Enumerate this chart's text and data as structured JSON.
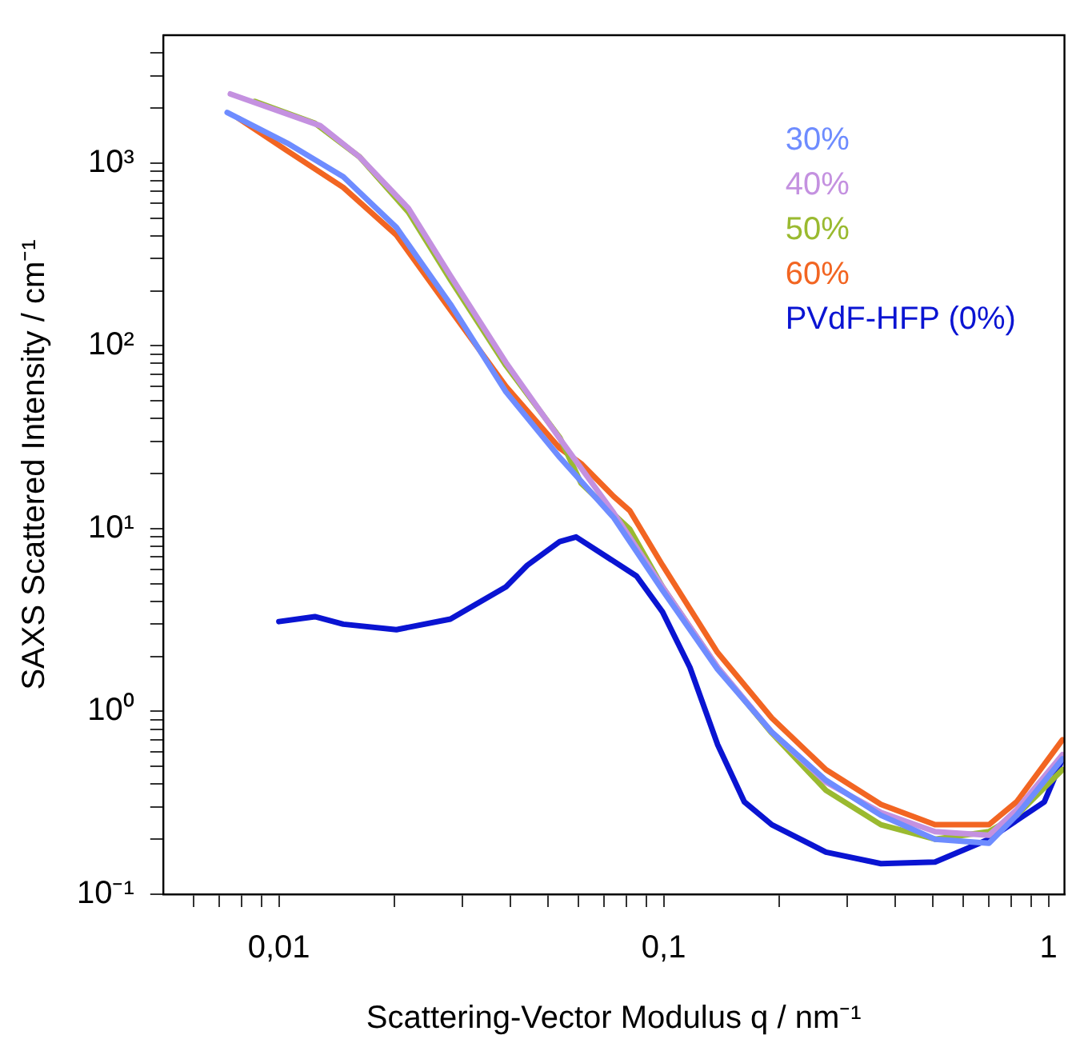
{
  "chart_data": {
    "type": "line",
    "xlabel": "Scattering-Vector Modulus q / nm⁻¹",
    "ylabel": "SAXS Scattered Intensity / cm⁻¹",
    "log": "xy",
    "grid": false,
    "legend": "top right",
    "marker": "none",
    "line_style": "solid",
    "xlim": [
      0.005,
      1.1
    ],
    "ylim": [
      0.1,
      5000
    ],
    "xticks": [
      {
        "value": 0.006,
        "label": null
      },
      {
        "value": 0.007,
        "label": null
      },
      {
        "value": 0.008,
        "label": null
      },
      {
        "value": 0.009,
        "label": null
      },
      {
        "value": 0.01,
        "label": "0,01"
      },
      {
        "value": 0.02,
        "label": null
      },
      {
        "value": 0.03,
        "label": null
      },
      {
        "value": 0.04,
        "label": null
      },
      {
        "value": 0.05,
        "label": null
      },
      {
        "value": 0.06,
        "label": null
      },
      {
        "value": 0.07,
        "label": null
      },
      {
        "value": 0.08,
        "label": null
      },
      {
        "value": 0.09,
        "label": null
      },
      {
        "value": 0.1,
        "label": "0,1"
      },
      {
        "value": 0.2,
        "label": null
      },
      {
        "value": 0.3,
        "label": null
      },
      {
        "value": 0.4,
        "label": null
      },
      {
        "value": 0.5,
        "label": null
      },
      {
        "value": 0.6,
        "label": null
      },
      {
        "value": 0.7,
        "label": null
      },
      {
        "value": 0.8,
        "label": null
      },
      {
        "value": 0.9,
        "label": null
      },
      1
    ],
    "yticks": [
      {
        "value": 0.1,
        "label": "10⁻¹"
      },
      {
        "value": 0.2,
        "label": null
      },
      {
        "value": 0.3,
        "label": null
      },
      {
        "value": 0.4,
        "label": null
      },
      {
        "value": 0.5,
        "label": null
      },
      {
        "value": 0.6,
        "label": null
      },
      {
        "value": 0.7,
        "label": null
      },
      {
        "value": 0.8,
        "label": null
      },
      {
        "value": 0.9,
        "label": null
      },
      {
        "value": 1,
        "label": "10⁰"
      },
      {
        "value": 2,
        "label": null
      },
      {
        "value": 3,
        "label": null
      },
      {
        "value": 4,
        "label": null
      },
      {
        "value": 5,
        "label": null
      },
      {
        "value": 6,
        "label": null
      },
      {
        "value": 7,
        "label": null
      },
      {
        "value": 8,
        "label": null
      },
      {
        "value": 9,
        "label": null
      },
      {
        "value": 10,
        "label": "10¹"
      },
      {
        "value": 20,
        "label": null
      },
      {
        "value": 30,
        "label": null
      },
      {
        "value": 40,
        "label": null
      },
      {
        "value": 50,
        "label": null
      },
      {
        "value": 60,
        "label": null
      },
      {
        "value": 70,
        "label": null
      },
      {
        "value": 80,
        "label": null
      },
      {
        "value": 90,
        "label": null
      },
      {
        "value": 100,
        "label": "10²"
      },
      {
        "value": 200,
        "label": null
      },
      {
        "value": 300,
        "label": null
      },
      {
        "value": 400,
        "label": null
      },
      {
        "value": 500,
        "label": null
      },
      {
        "value": 600,
        "label": null
      },
      {
        "value": 700,
        "label": null
      },
      {
        "value": 800,
        "label": null
      },
      {
        "value": 900,
        "label": null
      },
      {
        "value": 1000,
        "label": "10³"
      },
      {
        "value": 2000,
        "label": null
      },
      {
        "value": 3000,
        "label": null
      },
      {
        "value": 4000,
        "label": null
      }
    ],
    "series": [
      {
        "name": "30%",
        "color": "#6e8cff",
        "x": [
          0.00734,
          0.0105,
          0.0147,
          0.0202,
          0.0279,
          0.0389,
          0.0537,
          0.0741,
          0.0993,
          0.138,
          0.191,
          0.264,
          0.367,
          0.507,
          0.7,
          0.826,
          1.087
        ],
        "values": [
          1890,
          1285,
          840,
          444,
          169,
          56,
          24.5,
          11.5,
          4.6,
          1.7,
          0.77,
          0.42,
          0.27,
          0.2,
          0.19,
          0.27,
          0.55
        ]
      },
      {
        "name": "40%",
        "color": "#c491e0",
        "x": [
          0.00748,
          0.0128,
          0.0162,
          0.0217,
          0.0279,
          0.0389,
          0.0537,
          0.0741,
          0.0993,
          0.138,
          0.191,
          0.264,
          0.367,
          0.507,
          0.7,
          0.826,
          1.087
        ],
        "values": [
          2385,
          1600,
          1080,
          565,
          242,
          81,
          31,
          12.2,
          4.8,
          1.75,
          0.77,
          0.41,
          0.28,
          0.22,
          0.21,
          0.29,
          0.58
        ]
      },
      {
        "name": "50%",
        "color": "#9aba30",
        "x": [
          0.00866,
          0.0124,
          0.0162,
          0.0217,
          0.0279,
          0.0389,
          0.0537,
          0.061,
          0.0741,
          0.0817,
          0.0993,
          0.138,
          0.191,
          0.264,
          0.367,
          0.507,
          0.7,
          0.826,
          1.087
        ],
        "values": [
          2170,
          1650,
          1080,
          539,
          230,
          78,
          31.5,
          17.7,
          12,
          9.9,
          4.8,
          1.74,
          0.76,
          0.37,
          0.24,
          0.2,
          0.22,
          0.27,
          0.48
        ]
      },
      {
        "name": "60%",
        "color": "#f26522",
        "x": [
          0.00786,
          0.0105,
          0.0147,
          0.0202,
          0.0279,
          0.0389,
          0.0537,
          0.061,
          0.0741,
          0.0817,
          0.0993,
          0.138,
          0.191,
          0.264,
          0.367,
          0.507,
          0.7,
          0.826,
          1.087
        ],
        "values": [
          1750,
          1167,
          735,
          403,
          157,
          60,
          27.5,
          22.7,
          15,
          12.5,
          6.3,
          2.1,
          0.92,
          0.48,
          0.31,
          0.24,
          0.24,
          0.32,
          0.7
        ]
      },
      {
        "name": "PVdF-HFP (0%)",
        "color": "#0a14d2",
        "x": [
          0.01,
          0.0124,
          0.0147,
          0.0202,
          0.0279,
          0.0389,
          0.0442,
          0.0537,
          0.0592,
          0.085,
          0.0993,
          0.117,
          0.138,
          0.162,
          0.191,
          0.264,
          0.367,
          0.507,
          0.7,
          0.975,
          1.087
        ],
        "values": [
          3.1,
          3.3,
          3,
          2.8,
          3.2,
          4.8,
          6.3,
          8.5,
          9,
          5.5,
          3.5,
          1.74,
          0.66,
          0.32,
          0.24,
          0.17,
          0.147,
          0.15,
          0.2,
          0.32,
          0.55
        ]
      }
    ]
  }
}
